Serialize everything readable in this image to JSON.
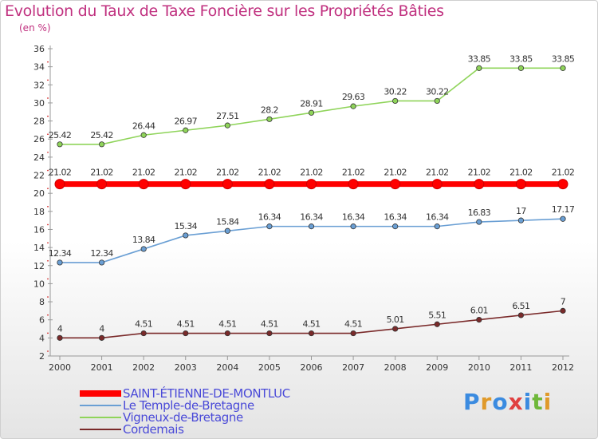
{
  "title": "Evolution du Taux de Taxe Foncière sur les Propriétés Bâties",
  "unit_label": "(en %)",
  "logo": {
    "text": "Proxiti",
    "colors": [
      "#3b8be0",
      "#e09a2a",
      "#3b8be0",
      "#e04040",
      "#3b8be0",
      "#6fb83a",
      "#e09a2a"
    ]
  },
  "chart_data": {
    "type": "line",
    "title": "Evolution du Taux de Taxe Foncière sur les Propriétés Bâties",
    "ylabel": "(en %)",
    "xlabel": "",
    "x": [
      "2000",
      "2001",
      "2002",
      "2003",
      "2004",
      "2005",
      "2006",
      "2007",
      "2008",
      "2009",
      "2010",
      "2011",
      "2012"
    ],
    "ylim": [
      2,
      36
    ],
    "yticks": [
      2,
      4,
      6,
      8,
      10,
      12,
      14,
      16,
      18,
      20,
      22,
      24,
      26,
      28,
      30,
      32,
      34,
      36
    ],
    "grid": false,
    "legend_position": "bottom-left",
    "series": [
      {
        "name": "SAINT-ÉTIENNE-DE-MONTLUC",
        "color": "#ff0000",
        "emphasis": true,
        "values": [
          21.02,
          21.02,
          21.02,
          21.02,
          21.02,
          21.02,
          21.02,
          21.02,
          21.02,
          21.02,
          21.02,
          21.02,
          21.02
        ],
        "labels": [
          "21.02",
          "21.02",
          "21.02",
          "21.02",
          "21.02",
          "21.02",
          "21.02",
          "21.02",
          "21.02",
          "21.02",
          "21.02",
          "21.02",
          "21.02"
        ]
      },
      {
        "name": "Le Temple-de-Bretagne",
        "color": "#6a9fd4",
        "emphasis": false,
        "values": [
          12.34,
          12.34,
          13.84,
          15.34,
          15.84,
          16.34,
          16.34,
          16.34,
          16.34,
          16.34,
          16.83,
          17,
          17.17
        ],
        "labels": [
          "12.34",
          "12.34",
          "13.84",
          "15.34",
          "15.84",
          "16.34",
          "16.34",
          "16.34",
          "16.34",
          "16.34",
          "16.83",
          "17",
          "17.17"
        ]
      },
      {
        "name": "Vigneux-de-Bretagne",
        "color": "#8fd45a",
        "emphasis": false,
        "values": [
          25.42,
          25.42,
          26.44,
          26.97,
          27.51,
          28.2,
          28.91,
          29.63,
          30.22,
          30.22,
          33.85,
          33.85,
          33.85
        ],
        "labels": [
          "25.42",
          "25.42",
          "26.44",
          "26.97",
          "27.51",
          "28.2",
          "28.91",
          "29.63",
          "30.22",
          "30.22",
          "33.85",
          "33.85",
          "33.85"
        ]
      },
      {
        "name": "Cordemais",
        "color": "#7a2a2a",
        "emphasis": false,
        "values": [
          4,
          4,
          4.51,
          4.51,
          4.51,
          4.51,
          4.51,
          4.51,
          5.01,
          5.51,
          6.01,
          6.51,
          7
        ],
        "labels": [
          "4",
          "4",
          "4.51",
          "4.51",
          "4.51",
          "4.51",
          "4.51",
          "4.51",
          "5.01",
          "5.51",
          "6.01",
          "6.51",
          "7"
        ]
      }
    ]
  }
}
